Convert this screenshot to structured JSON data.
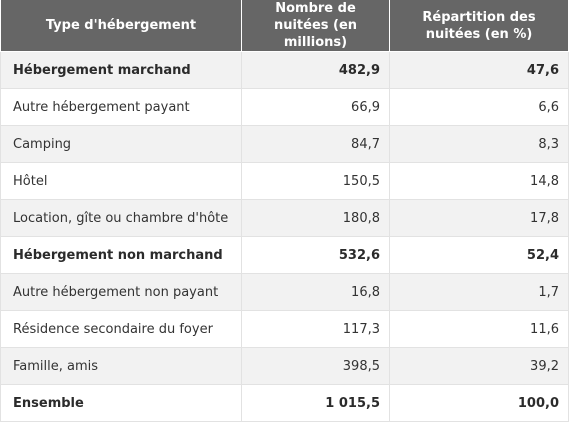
{
  "table": {
    "headers": [
      "Type d'hébergement",
      "Nombre de nuitées (en millions)",
      "Répartition des nuitées (en %)"
    ],
    "rows": [
      {
        "label": "Hébergement marchand",
        "nuitees": "482,9",
        "repartition": "47,6",
        "bold": true
      },
      {
        "label": "Autre hébergement payant",
        "nuitees": "66,9",
        "repartition": "6,6",
        "bold": false
      },
      {
        "label": "Camping",
        "nuitees": "84,7",
        "repartition": "8,3",
        "bold": false
      },
      {
        "label": "Hôtel",
        "nuitees": "150,5",
        "repartition": "14,8",
        "bold": false
      },
      {
        "label": "Location, gîte ou chambre d'hôte",
        "nuitees": "180,8",
        "repartition": "17,8",
        "bold": false
      },
      {
        "label": "Hébergement non marchand",
        "nuitees": "532,6",
        "repartition": "52,4",
        "bold": true
      },
      {
        "label": "Autre hébergement non payant",
        "nuitees": "16,8",
        "repartition": "1,7",
        "bold": false
      },
      {
        "label": "Résidence secondaire du foyer",
        "nuitees": "117,3",
        "repartition": "11,6",
        "bold": false
      },
      {
        "label": "Famille, amis",
        "nuitees": "398,5",
        "repartition": "39,2",
        "bold": false
      },
      {
        "label": "Ensemble",
        "nuitees": "1 015,5",
        "repartition": "100,0",
        "bold": true
      }
    ]
  },
  "colors": {
    "header_bg": "#666666",
    "header_text": "#ffffff",
    "stripe_bg": "#f2f2f2",
    "border": "#e2e2e2"
  }
}
